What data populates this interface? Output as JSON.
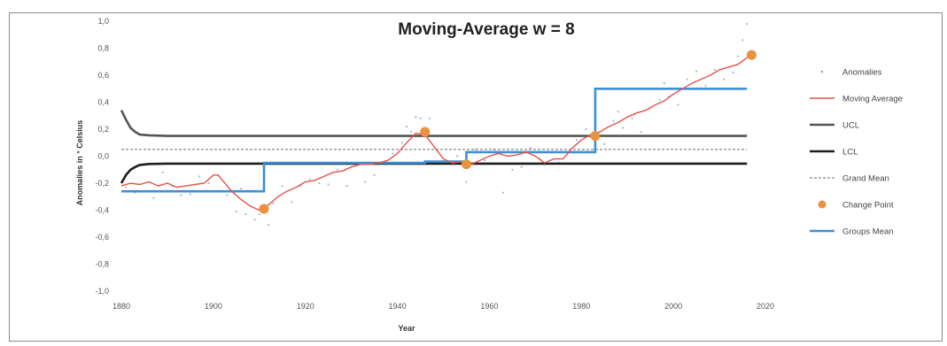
{
  "header_strip": "",
  "chart_data": {
    "type": "line",
    "title": "Moving-Average w = 8",
    "xlabel": "Year",
    "ylabel": "Anomalies in ° Celsius",
    "xlim": [
      1880,
      2020
    ],
    "ylim": [
      -1.0,
      1.0
    ],
    "x_ticks": [
      "1880",
      "1900",
      "1920",
      "1940",
      "1960",
      "1980",
      "2000",
      "2020"
    ],
    "y_ticks": [
      "-1,0",
      "-0,8",
      "-0,6",
      "-0,4",
      "-0,2",
      "0,0",
      "0,2",
      "0,4",
      "0,6",
      "0,8",
      "1,0"
    ],
    "grid": false,
    "legend_position": "right",
    "legend": [
      "Anomalies",
      "Moving Average",
      "UCL",
      "LCL",
      "Grand Mean",
      "Change Point",
      "Groups Mean"
    ],
    "colors": {
      "anomalies": "#7f9fcf",
      "moving_average": "#e3534a",
      "ucl": "#555555",
      "lcl": "#1e1e1e",
      "grand_mean": "#888888",
      "change_point": "#e9923f",
      "groups_mean": "#3d8fd6"
    },
    "series": [
      {
        "name": "Moving Average",
        "x": [
          1880,
          1882,
          1884,
          1886,
          1888,
          1890,
          1892,
          1894,
          1896,
          1898,
          1900,
          1901,
          1902,
          1904,
          1906,
          1908,
          1910,
          1911,
          1912,
          1914,
          1916,
          1918,
          1920,
          1922,
          1924,
          1926,
          1928,
          1930,
          1932,
          1934,
          1936,
          1938,
          1940,
          1942,
          1944,
          1946,
          1948,
          1950,
          1952,
          1954,
          1956,
          1958,
          1960,
          1962,
          1964,
          1966,
          1968,
          1970,
          1972,
          1974,
          1976,
          1978,
          1980,
          1982,
          1984,
          1986,
          1988,
          1990,
          1992,
          1994,
          1996,
          1998,
          2000,
          2002,
          2004,
          2006,
          2008,
          2010,
          2012,
          2014,
          2016,
          2017
        ],
        "y": [
          -0.22,
          -0.2,
          -0.21,
          -0.19,
          -0.22,
          -0.2,
          -0.23,
          -0.22,
          -0.21,
          -0.2,
          -0.14,
          -0.14,
          -0.18,
          -0.26,
          -0.32,
          -0.37,
          -0.4,
          -0.39,
          -0.36,
          -0.3,
          -0.26,
          -0.23,
          -0.19,
          -0.18,
          -0.15,
          -0.12,
          -0.11,
          -0.08,
          -0.06,
          -0.06,
          -0.05,
          -0.03,
          0.02,
          0.1,
          0.17,
          0.16,
          0.07,
          -0.02,
          -0.05,
          -0.04,
          -0.06,
          -0.03,
          0.0,
          0.02,
          0.0,
          0.01,
          0.03,
          0.0,
          -0.05,
          -0.02,
          -0.02,
          0.06,
          0.12,
          0.16,
          0.18,
          0.22,
          0.25,
          0.29,
          0.32,
          0.34,
          0.38,
          0.41,
          0.46,
          0.5,
          0.54,
          0.57,
          0.6,
          0.64,
          0.66,
          0.68,
          0.73,
          0.74
        ]
      },
      {
        "name": "Change Point",
        "x": [
          1911,
          1946,
          1955,
          1983,
          2017
        ],
        "y": [
          -0.39,
          0.18,
          -0.06,
          0.15,
          0.75
        ]
      },
      {
        "name": "Groups Mean",
        "x": [
          1880,
          1911,
          1911,
          1946,
          1946,
          1955,
          1955,
          1983,
          1983,
          2016
        ],
        "y": [
          -0.26,
          -0.26,
          -0.05,
          -0.05,
          -0.04,
          -0.04,
          0.03,
          0.03,
          0.5,
          0.5
        ]
      },
      {
        "name": "UCL",
        "x": [
          1880,
          1881,
          1882,
          1883,
          1884,
          1886,
          1890,
          2016
        ],
        "y": [
          0.34,
          0.27,
          0.21,
          0.18,
          0.16,
          0.155,
          0.15,
          0.15
        ]
      },
      {
        "name": "LCL",
        "x": [
          1880,
          1881,
          1882,
          1883,
          1884,
          1886,
          1890,
          2016
        ],
        "y": [
          -0.2,
          -0.14,
          -0.1,
          -0.08,
          -0.065,
          -0.058,
          -0.055,
          -0.055
        ]
      },
      {
        "name": "Grand Mean",
        "x": [
          1880,
          2016
        ],
        "y": [
          0.05,
          0.05
        ]
      },
      {
        "name": "Anomalies",
        "x": [
          1881,
          1883,
          1885,
          1887,
          1889,
          1891,
          1893,
          1895,
          1897,
          1899,
          1901,
          1903,
          1905,
          1906,
          1907,
          1909,
          1910,
          1912,
          1913,
          1915,
          1917,
          1919,
          1921,
          1923,
          1925,
          1927,
          1929,
          1931,
          1933,
          1935,
          1937,
          1939,
          1941,
          1942,
          1943,
          1944,
          1945,
          1947,
          1949,
          1951,
          1953,
          1955,
          1957,
          1959,
          1961,
          1963,
          1965,
          1967,
          1969,
          1971,
          1973,
          1975,
          1977,
          1979,
          1981,
          1983,
          1985,
          1987,
          1988,
          1989,
          1991,
          1993,
          1995,
          1997,
          1998,
          1999,
          2001,
          2003,
          2005,
          2007,
          2009,
          2011,
          2013,
          2014,
          2015,
          2016
        ],
        "y": [
          -0.23,
          -0.27,
          -0.26,
          -0.31,
          -0.12,
          -0.22,
          -0.29,
          -0.28,
          -0.15,
          -0.2,
          -0.14,
          -0.29,
          -0.41,
          -0.24,
          -0.43,
          -0.47,
          -0.43,
          -0.51,
          -0.35,
          -0.22,
          -0.34,
          -0.22,
          -0.17,
          -0.2,
          -0.21,
          -0.1,
          -0.22,
          -0.07,
          -0.19,
          -0.14,
          -0.05,
          0.02,
          0.1,
          0.22,
          0.18,
          0.29,
          0.28,
          0.28,
          -0.05,
          -0.05,
          0.0,
          -0.19,
          0.05,
          -0.03,
          0.05,
          -0.27,
          -0.1,
          -0.08,
          0.06,
          -0.02,
          0.15,
          -0.05,
          0.02,
          0.12,
          0.2,
          0.26,
          0.09,
          0.26,
          0.33,
          0.21,
          0.28,
          0.18,
          0.36,
          0.42,
          0.54,
          0.44,
          0.38,
          0.57,
          0.63,
          0.52,
          0.64,
          0.57,
          0.62,
          0.74,
          0.86,
          0.98
        ]
      }
    ]
  }
}
